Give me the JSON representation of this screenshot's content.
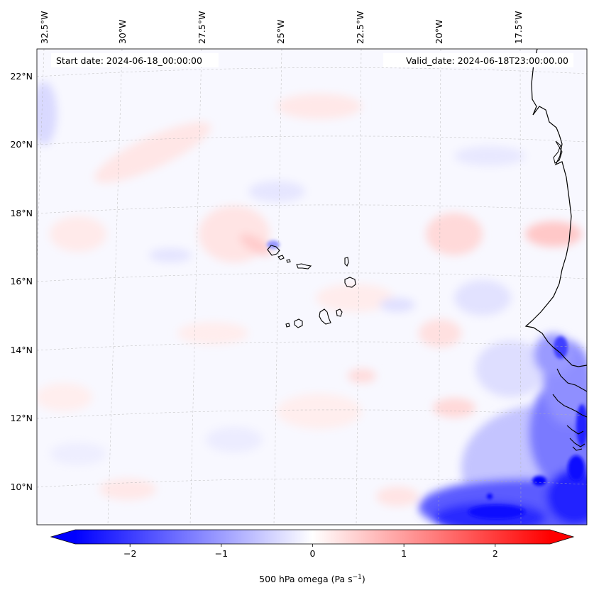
{
  "map": {
    "start_date_label": "Start date: 2024-06-18_00:00:00",
    "valid_date_label": "Valid_date: 2024-06-18T23:00:00.00",
    "longitude_labels": [
      "32.5°W",
      "30°W",
      "27.5°W",
      "25°W",
      "22.5°W",
      "20°W",
      "17.5°W"
    ],
    "latitude_labels": [
      "22°N",
      "20°N",
      "18°N",
      "16°N",
      "14°N",
      "12°N",
      "10°N"
    ],
    "variable": "500 hPa omega",
    "units": "Pa s",
    "units_exponent": "−1",
    "colormap": "bwr",
    "color_range": [
      -2.6,
      2.6
    ],
    "gridlines": true
  },
  "colorbar": {
    "ticks": [
      {
        "value": -2,
        "label": "−2"
      },
      {
        "value": -1,
        "label": "−1"
      },
      {
        "value": 0,
        "label": "0"
      },
      {
        "value": 1,
        "label": "1"
      },
      {
        "value": 2,
        "label": "2"
      }
    ],
    "colors": {
      "min": "#0000ff",
      "mid": "#ffffff",
      "max": "#ff0000"
    },
    "extend": "both"
  }
}
